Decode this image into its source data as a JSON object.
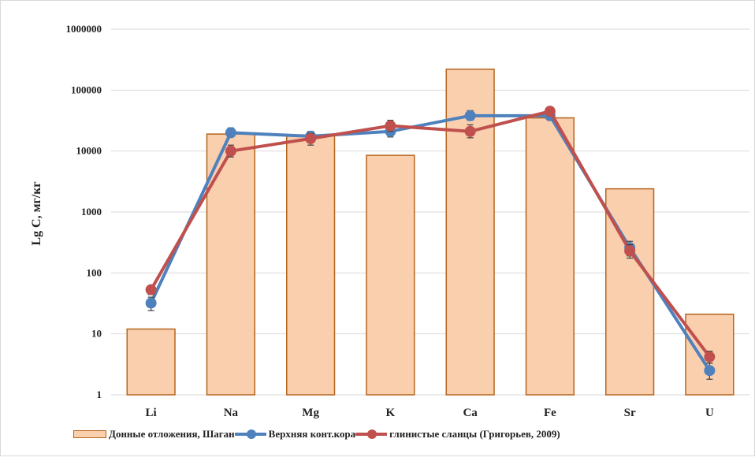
{
  "colors": {
    "bar_fill": "#f9cfae",
    "bar_stroke": "#b5651d",
    "upper_crust": "#4f81bd",
    "clay_shales": "#c0504d",
    "grid": "#d9d9d9"
  },
  "chart_data": {
    "type": "bar",
    "ylabel": "Lg C, мг/кг",
    "y_scale": "log",
    "ylim": [
      1,
      1000000
    ],
    "y_ticks": [
      "1",
      "10",
      "100",
      "1000",
      "10000",
      "100000",
      "1000000"
    ],
    "categories": [
      "Li",
      "Na",
      "Mg",
      "K",
      "Ca",
      "Fe",
      "Sr",
      "U"
    ],
    "grid": true,
    "legend_position": "bottom",
    "series": [
      {
        "name": "Донные отложения, Шаган",
        "kind": "bar",
        "values": [
          12,
          19000,
          18000,
          8500,
          220000,
          35000,
          2400,
          21
        ]
      },
      {
        "name": "Верхняя конт.кора",
        "kind": "line",
        "values": [
          32,
          20000,
          17500,
          21000,
          38000,
          38000,
          260,
          2.5
        ],
        "error_low": [
          24,
          17000,
          14000,
          17000,
          32000,
          32000,
          190,
          1.8
        ],
        "error_high": [
          40,
          24000,
          21000,
          26000,
          46000,
          44000,
          330,
          3.3
        ]
      },
      {
        "name": "глинистые сланцы (Григорьев, 2009)",
        "kind": "line",
        "values": [
          53,
          10000,
          16000,
          26000,
          21000,
          45000,
          230,
          4.2
        ],
        "error_low": [
          44,
          8000,
          12500,
          21000,
          16500,
          38000,
          175,
          3.3
        ],
        "error_high": [
          62,
          12500,
          19500,
          32000,
          27000,
          52000,
          290,
          5.2
        ]
      }
    ]
  }
}
